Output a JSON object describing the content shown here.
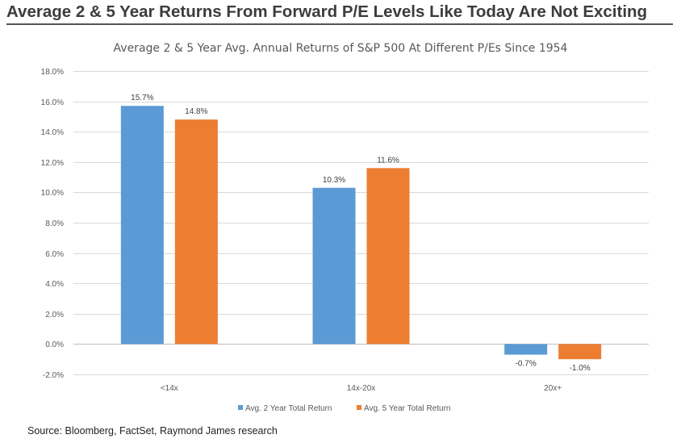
{
  "headline": "Average 2 & 5 Year Returns From Forward P/E Levels Like Today Are Not Exciting",
  "source": "Source:  Bloomberg, FactSet, Raymond James research",
  "chart_data": {
    "type": "bar",
    "title": "Average 2 & 5 Year Avg. Annual Returns of S&P 500 At Different P/Es Since 1954",
    "categories": [
      "<14x",
      "14x-20x",
      "20x+"
    ],
    "series": [
      {
        "name": "Avg. 2 Year Total Return",
        "values": [
          15.7,
          10.3,
          -0.7
        ],
        "labels": [
          "15.7%",
          "10.3%",
          "-0.7%"
        ],
        "color": "#5b9bd5"
      },
      {
        "name": "Avg. 5 Year Total Return",
        "values": [
          14.8,
          11.6,
          -1.0
        ],
        "labels": [
          "14.8%",
          "11.6%",
          "-1.0%"
        ],
        "color": "#ed7d31"
      }
    ],
    "ylim": [
      -2,
      18
    ],
    "yticks": [
      -2,
      0,
      2,
      4,
      6,
      8,
      10,
      12,
      14,
      16,
      18
    ],
    "ytick_labels": [
      "-2.0%",
      "0.0%",
      "2.0%",
      "4.0%",
      "6.0%",
      "8.0%",
      "10.0%",
      "12.0%",
      "14.0%",
      "16.0%",
      "18.0%"
    ],
    "xlabel": "",
    "ylabel": "",
    "grid": true,
    "legend_position": "bottom"
  }
}
